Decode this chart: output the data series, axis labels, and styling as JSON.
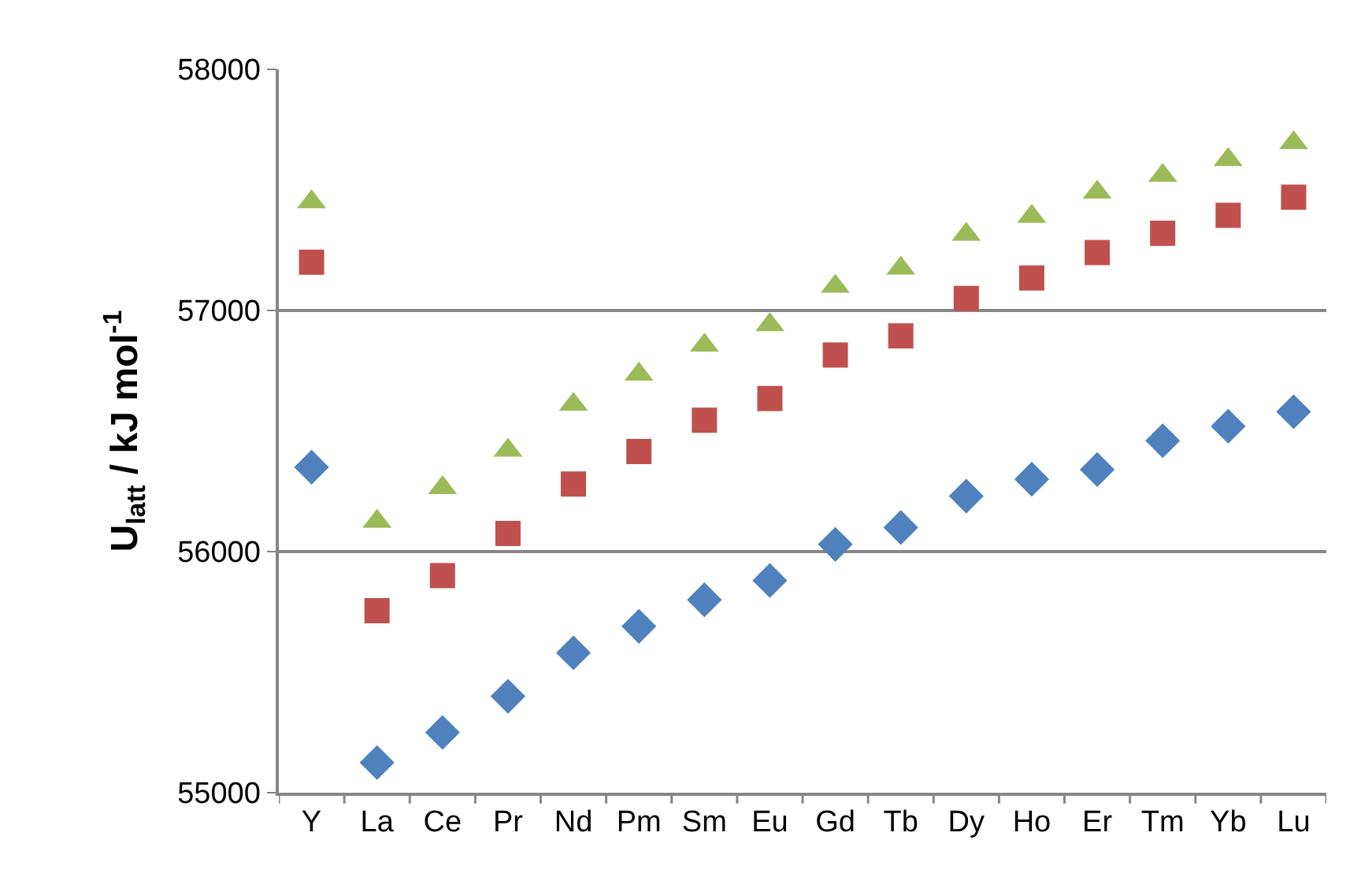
{
  "chart_data": {
    "type": "scatter",
    "ylabel": "U$_{latt}$ / kJ mol$^{-1}$",
    "categories": [
      "Y",
      "La",
      "Ce",
      "Pr",
      "Nd",
      "Pm",
      "Sm",
      "Eu",
      "Gd",
      "Tb",
      "Dy",
      "Ho",
      "Er",
      "Tm",
      "Yb",
      "Lu"
    ],
    "series": [
      {
        "color": "#4f81bd",
        "marker": "diamond",
        "values": [
          56350,
          55125,
          55250,
          55400,
          55580,
          55690,
          55800,
          55880,
          56030,
          56100,
          56230,
          56300,
          56340,
          56460,
          56520,
          56580
        ]
      },
      {
        "color": "#c0504d",
        "marker": "square",
        "values": [
          57200,
          55755,
          55900,
          56075,
          56280,
          56415,
          56545,
          56635,
          56815,
          56895,
          57050,
          57135,
          57240,
          57320,
          57395,
          57470
        ]
      },
      {
        "color": "#9bbb59",
        "marker": "triangle",
        "values": [
          57450,
          56125,
          56265,
          56420,
          56610,
          56735,
          56855,
          56940,
          57100,
          57175,
          57315,
          57390,
          57490,
          57560,
          57625,
          57695
        ]
      }
    ],
    "ylim": [
      55000,
      58000
    ],
    "yticks": [
      55000,
      56000,
      57000,
      58000
    ],
    "grid": "y",
    "legend": false
  }
}
